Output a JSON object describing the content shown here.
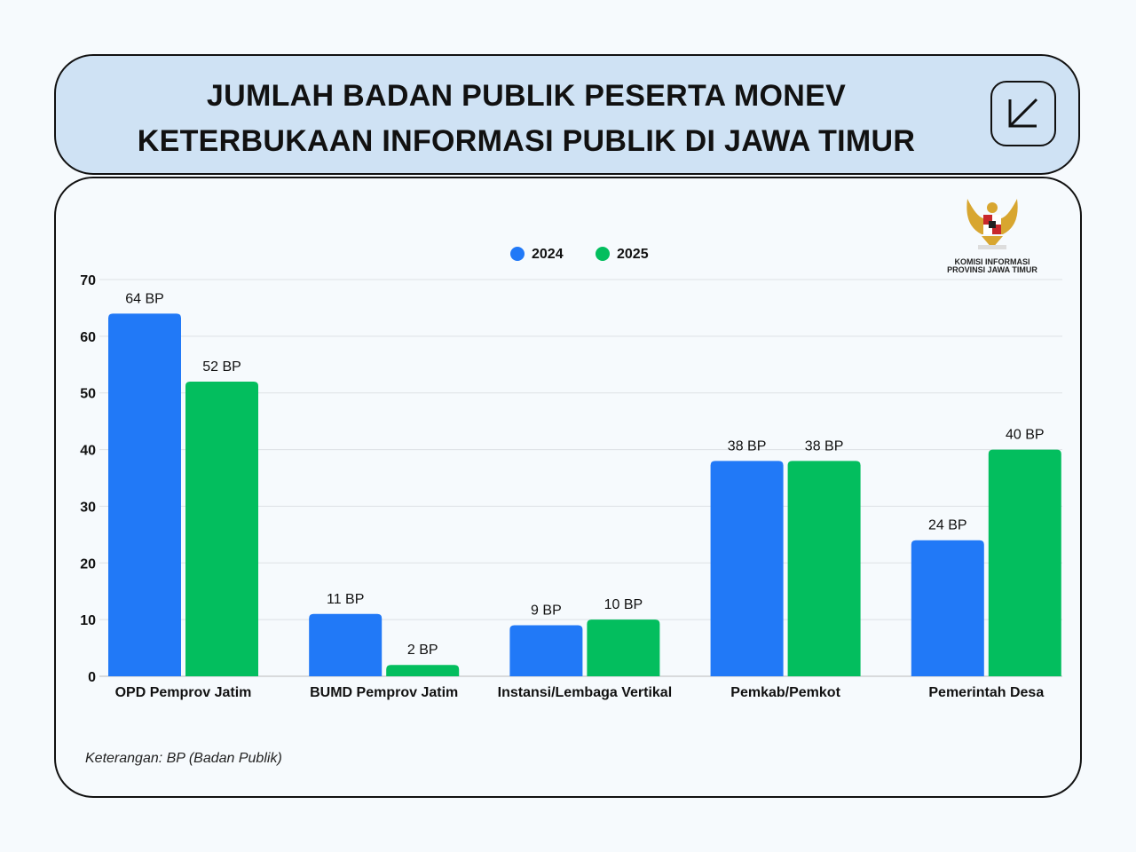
{
  "header": {
    "title_line1": "JUMLAH BADAN PUBLIK PESERTA MONEV",
    "title_line2": "KETERBUKAAN INFORMASI PUBLIK DI JAWA TIMUR",
    "icon": "arrow-down-left-icon"
  },
  "logo": {
    "line1": "KOMISI INFORMASI",
    "line2": "PROVINSI JAWA TIMUR"
  },
  "note": "Keterangan: BP (Badan Publik)",
  "chart_data": {
    "type": "bar",
    "categories": [
      "OPD Pemprov Jatim",
      "BUMD Pemprov Jatim",
      "Instansi/Lembaga Vertikal",
      "Pemkab/Pemkot",
      "Pemerintah Desa"
    ],
    "series": [
      {
        "name": "2024",
        "color": "#2179f7",
        "values": [
          64,
          11,
          9,
          38,
          24
        ],
        "labels": [
          "64 BP",
          "11 BP",
          "9 BP",
          "38 BP",
          "24 BP"
        ]
      },
      {
        "name": "2025",
        "color": "#03be5e",
        "values": [
          52,
          2,
          10,
          38,
          40
        ],
        "labels": [
          "52 BP",
          "2 BP",
          "10 BP",
          "38 BP",
          "40 BP"
        ]
      }
    ],
    "ylim": [
      0,
      70
    ],
    "yticks": [
      "0",
      "10",
      "20",
      "30",
      "40",
      "50",
      "60",
      "70"
    ],
    "grid": true,
    "legend": "top-center"
  }
}
